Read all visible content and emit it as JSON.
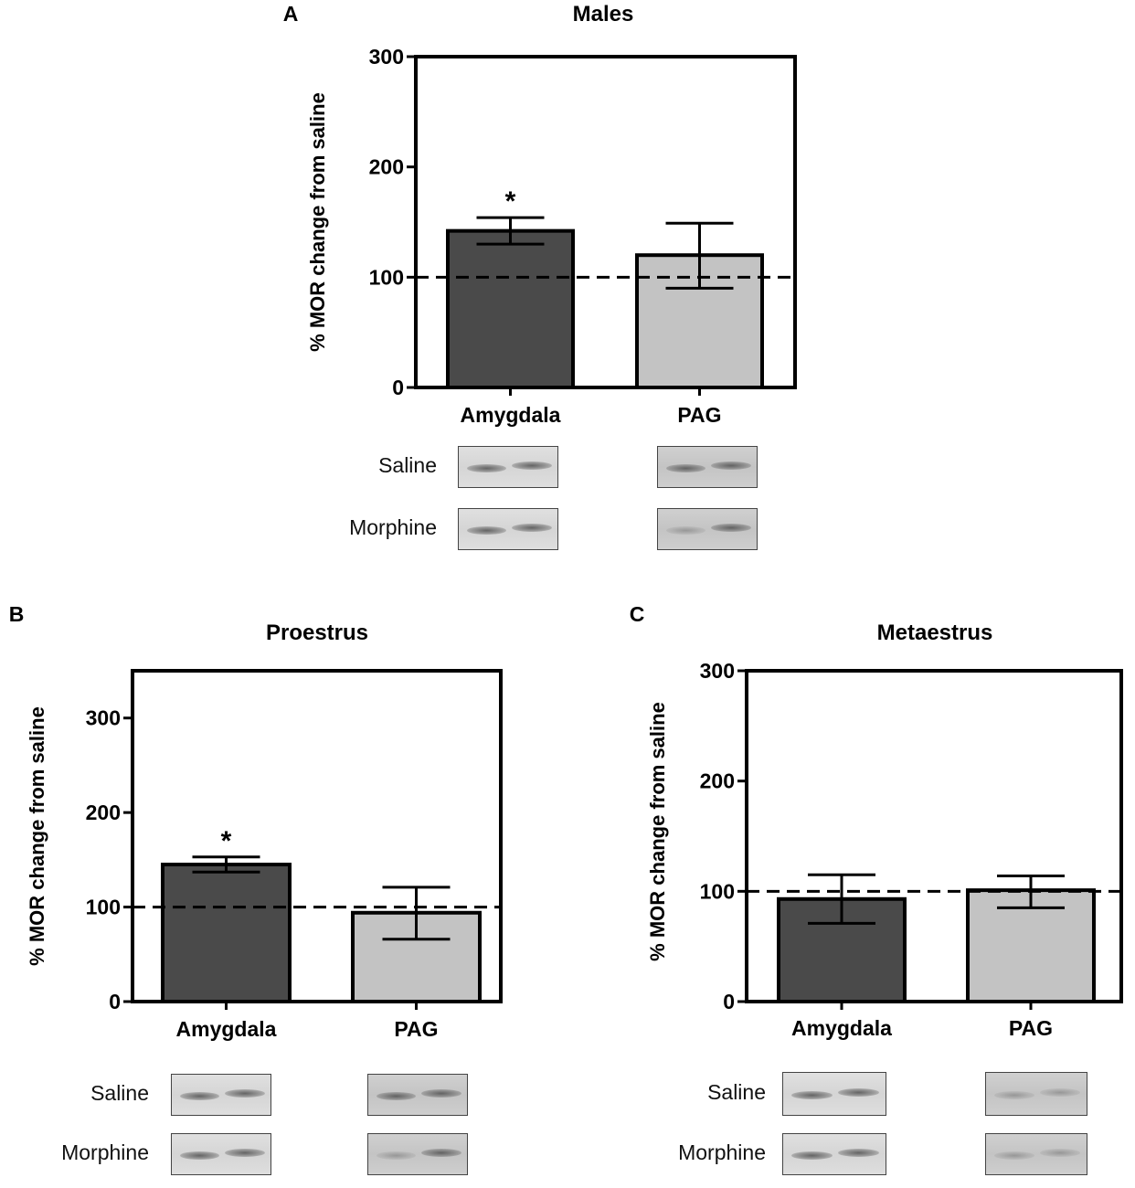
{
  "chart_data": [
    {
      "panel": "A",
      "type": "bar",
      "title": "Males",
      "ylabel": "% MOR change from saline",
      "xlabel": "",
      "categories": [
        "Amygdala",
        "PAG"
      ],
      "values": [
        142,
        120
      ],
      "error": [
        [
          130,
          154
        ],
        [
          90,
          149
        ]
      ],
      "significance": [
        "*",
        ""
      ],
      "colors": [
        "#4a4a4a",
        "#c3c3c3"
      ],
      "reference_line": 100,
      "ylim": [
        0,
        300
      ],
      "yticks": [
        0,
        100,
        200,
        300
      ],
      "grid": false,
      "blot_rows": [
        "Saline",
        "Morphine"
      ]
    },
    {
      "panel": "B",
      "type": "bar",
      "title": "Proestrus",
      "ylabel": "% MOR change from saline",
      "xlabel": "",
      "categories": [
        "Amygdala",
        "PAG"
      ],
      "values": [
        145,
        94
      ],
      "error": [
        [
          137,
          153
        ],
        [
          66,
          121
        ]
      ],
      "significance": [
        "*",
        ""
      ],
      "colors": [
        "#4a4a4a",
        "#c3c3c3"
      ],
      "reference_line": 100,
      "ylim": [
        0,
        350
      ],
      "yticks": [
        0,
        100,
        200,
        300
      ],
      "grid": false,
      "blot_rows": [
        "Saline",
        "Morphine"
      ]
    },
    {
      "panel": "C",
      "type": "bar",
      "title": "Metaestrus",
      "ylabel": "% MOR change from saline",
      "xlabel": "",
      "categories": [
        "Amygdala",
        "PAG"
      ],
      "values": [
        93,
        101
      ],
      "error": [
        [
          71,
          115
        ],
        [
          85,
          114
        ]
      ],
      "significance": [
        "",
        ""
      ],
      "colors": [
        "#4a4a4a",
        "#c3c3c3"
      ],
      "reference_line": 100,
      "ylim": [
        0,
        300
      ],
      "yticks": [
        0,
        100,
        200,
        300
      ],
      "grid": false,
      "blot_rows": [
        "Saline",
        "Morphine"
      ]
    }
  ]
}
